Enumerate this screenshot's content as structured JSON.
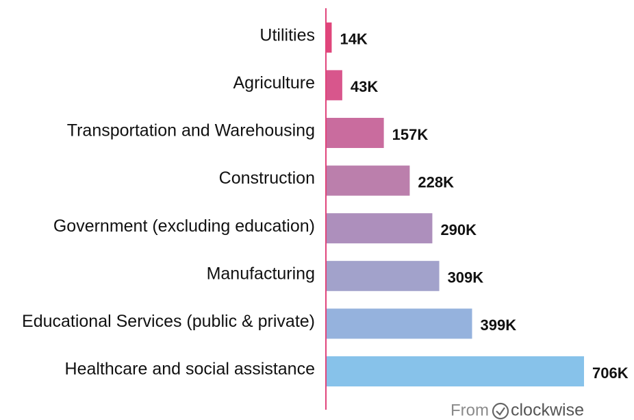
{
  "chart_data": {
    "type": "bar",
    "orientation": "horizontal",
    "categories": [
      "Utilities",
      "Agriculture",
      "Transportation and Warehousing",
      "Construction",
      "Government (excluding education)",
      "Manufacturing",
      "Educational Services (public & private)",
      "Healthcare and social assistance"
    ],
    "values": [
      14000,
      43000,
      157000,
      228000,
      290000,
      309000,
      399000,
      706000
    ],
    "value_labels": [
      "14K",
      "43K",
      "157K",
      "228K",
      "290K",
      "309K",
      "399K",
      "706K"
    ],
    "colors": [
      "#e0457b",
      "#d8568c",
      "#c96c9e",
      "#bb7fac",
      "#ad8fbc",
      "#a2a2cb",
      "#95b2dd",
      "#87c2ea"
    ],
    "source": {
      "prefix": "From",
      "brand": "clockwise"
    }
  }
}
